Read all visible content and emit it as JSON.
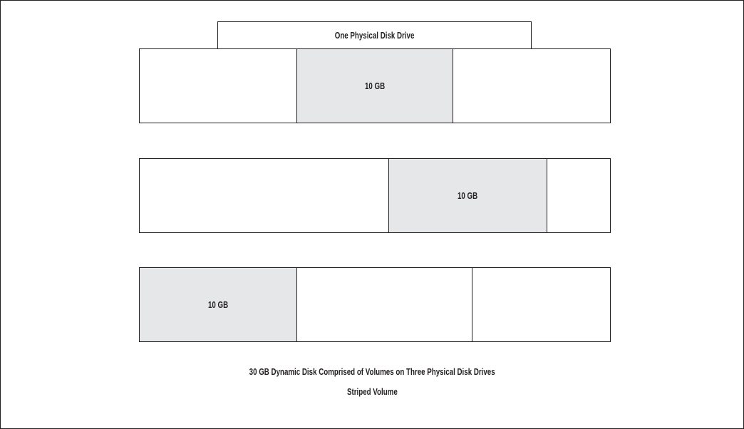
{
  "diagram": {
    "drive_label": "One Physical Disk Drive",
    "rows": [
      {
        "segments": [
          {
            "label": ""
          },
          {
            "label": "10 GB"
          },
          {
            "label": ""
          }
        ]
      },
      {
        "segments": [
          {
            "label": ""
          },
          {
            "label": "10 GB"
          },
          {
            "label": ""
          }
        ]
      },
      {
        "segments": [
          {
            "label": "10 GB"
          },
          {
            "label": ""
          },
          {
            "label": ""
          }
        ]
      }
    ],
    "caption_line1": "30 GB Dynamic Disk Comprised of Volumes on Three Physical Disk Drives",
    "caption_line2": "Striped Volume",
    "colors": {
      "line": "#231f20",
      "shade": "#e6e7e8",
      "background": "#ffffff"
    }
  }
}
